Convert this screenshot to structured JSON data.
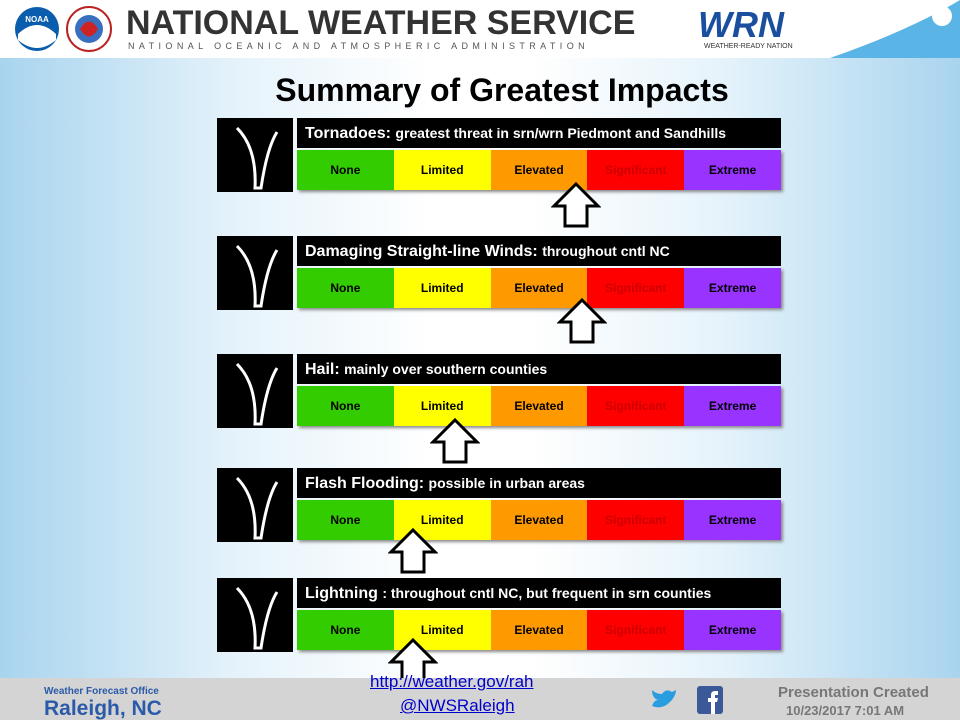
{
  "header": {
    "title": "NATIONAL WEATHER SERVICE",
    "subtitle": "NATIONAL OCEANIC AND ATMOSPHERIC ADMINISTRATION",
    "noaa": "NOAA",
    "wrn": "WRN",
    "wrn_sub": "WEATHER-READY NATION"
  },
  "title": "Summary of Greatest Impacts",
  "levels": [
    "None",
    "Limited",
    "Elevated",
    "Significant",
    "Extreme"
  ],
  "hazards": [
    {
      "name": "Tornadoes:",
      "detail": "greatest threat in srn/wrn Piedmont and Sandhills"
    },
    {
      "name": "Damaging Straight-line Winds:",
      "detail": "throughout cntl NC"
    },
    {
      "name": "Hail:",
      "detail": "mainly over southern counties"
    },
    {
      "name": "Flash Flooding:",
      "detail": "possible in urban areas"
    },
    {
      "name": "Lightning",
      "detail": ": throughout cntl NC, but frequent in srn counties"
    }
  ],
  "footer": {
    "office": "Weather Forecast Office",
    "city": "Raleigh, NC",
    "url": "http://weather.gov/rah",
    "handle": "@NWSRaleigh",
    "created": "Presentation Created",
    "date": "10/23/2017 7:01 AM"
  }
}
